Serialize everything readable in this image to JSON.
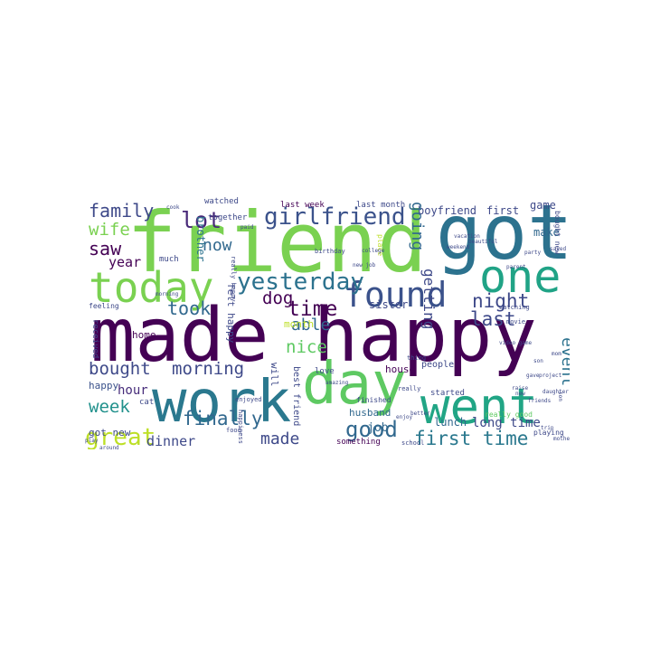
{
  "word_cloud": {
    "words": [
      {
        "text": "made happy",
        "color": "#440154"
      },
      {
        "text": "friend",
        "color": "#7ad151"
      },
      {
        "text": "got",
        "color": "#2c728e"
      },
      {
        "text": "work",
        "color": "#2a788e"
      },
      {
        "text": "day",
        "color": "#5ec962"
      },
      {
        "text": "went",
        "color": "#21a585"
      },
      {
        "text": "one",
        "color": "#20a386"
      },
      {
        "text": "today",
        "color": "#7ad151"
      },
      {
        "text": "found",
        "color": "#3b528b"
      },
      {
        "text": "yesterday",
        "color": "#2c728e"
      },
      {
        "text": "girlfriend",
        "color": "#3b528b"
      },
      {
        "text": "great",
        "color": "#bddf26"
      },
      {
        "text": "first time",
        "color": "#2a788e"
      },
      {
        "text": "good",
        "color": "#31688e"
      },
      {
        "text": "lot",
        "color": "#482878"
      },
      {
        "text": "time",
        "color": "#440154"
      },
      {
        "text": "bought",
        "color": "#3e4989"
      },
      {
        "text": "morning",
        "color": "#3e4989"
      },
      {
        "text": "night",
        "color": "#3e4989"
      },
      {
        "text": "last",
        "color": "#3e4989"
      },
      {
        "text": "family",
        "color": "#3e4989"
      },
      {
        "text": "wife",
        "color": "#7ad151"
      },
      {
        "text": "saw",
        "color": "#440154"
      },
      {
        "text": "year",
        "color": "#440154"
      },
      {
        "text": "now",
        "color": "#31688e"
      },
      {
        "text": "dog",
        "color": "#440154"
      },
      {
        "text": "took",
        "color": "#31688e"
      },
      {
        "text": "nice",
        "color": "#5ec962"
      },
      {
        "text": "able",
        "color": "#31688e"
      },
      {
        "text": "week",
        "color": "#21918c"
      },
      {
        "text": "finally",
        "color": "#31688e"
      },
      {
        "text": "made",
        "color": "#3e4989"
      },
      {
        "text": "dinner",
        "color": "#3e4989"
      },
      {
        "text": "hour",
        "color": "#472d7b"
      },
      {
        "text": "home",
        "color": "#440154"
      },
      {
        "text": "job",
        "color": "#31688e"
      },
      {
        "text": "lunch",
        "color": "#31688e"
      },
      {
        "text": "long time",
        "color": "#3e4989"
      },
      {
        "text": "sister",
        "color": "#3e4989"
      },
      {
        "text": "house",
        "color": "#440154"
      },
      {
        "text": "boyfriend",
        "color": "#3e4989"
      },
      {
        "text": "first",
        "color": "#3e4989"
      },
      {
        "text": "game",
        "color": "#3e4989"
      },
      {
        "text": "make",
        "color": "#31688e"
      },
      {
        "text": "watched",
        "color": "#3e4989"
      },
      {
        "text": "last week",
        "color": "#440154"
      },
      {
        "text": "last month",
        "color": "#3e4989"
      },
      {
        "text": "together",
        "color": "#3e4989"
      },
      {
        "text": "month",
        "color": "#bddf26"
      },
      {
        "text": "happy",
        "color": "#3b528b"
      },
      {
        "text": "cat",
        "color": "#3e4989"
      },
      {
        "text": "much",
        "color": "#3e4989"
      },
      {
        "text": "got new",
        "color": "#3e4989"
      },
      {
        "text": "something",
        "color": "#440154"
      },
      {
        "text": "husband",
        "color": "#31688e"
      },
      {
        "text": "started",
        "color": "#3e4989"
      },
      {
        "text": "people",
        "color": "#3e4989"
      },
      {
        "text": "love",
        "color": "#3e4989"
      },
      {
        "text": "finished",
        "color": "#3e4989"
      },
      {
        "text": "event",
        "color": "#2c728e"
      },
      {
        "text": "going",
        "color": "#31688e"
      },
      {
        "text": "getting",
        "color": "#3e4989"
      },
      {
        "text": "brother",
        "color": "#2c728e"
      },
      {
        "text": "felt happy",
        "color": "#3e4989"
      },
      {
        "text": "received",
        "color": "#3e4989"
      },
      {
        "text": "will",
        "color": "#3e4989"
      },
      {
        "text": "best friend",
        "color": "#3e4989"
      },
      {
        "text": "playing",
        "color": "#3e4989"
      },
      {
        "text": "bought new",
        "color": "#3e4989"
      },
      {
        "text": "feeling",
        "color": "#3e4989"
      },
      {
        "text": "place",
        "color": "#bddf26"
      },
      {
        "text": "birthday",
        "color": "#3e4989"
      },
      {
        "text": "school",
        "color": "#3e4989"
      },
      {
        "text": "really good",
        "color": "#5ec962"
      },
      {
        "text": "thing",
        "color": "#3e4989"
      },
      {
        "text": "watching",
        "color": "#3e4989"
      },
      {
        "text": "movie",
        "color": "#3e4989"
      },
      {
        "text": "enjoyed",
        "color": "#3e4989"
      },
      {
        "text": "really",
        "color": "#3e4989"
      },
      {
        "text": "really happy",
        "color": "#3e4989"
      },
      {
        "text": "food",
        "color": "#3e4989"
      },
      {
        "text": "happiness",
        "color": "#3e4989"
      },
      {
        "text": "amazing",
        "color": "#3e4989"
      },
      {
        "text": "paid",
        "color": "#3e4989"
      },
      {
        "text": "college",
        "color": "#3e4989"
      },
      {
        "text": "morning",
        "color": "#3e4989"
      },
      {
        "text": "new job",
        "color": "#3e4989"
      },
      {
        "text": "cook",
        "color": "#3e4989"
      },
      {
        "text": "friends",
        "color": "#3e4989"
      },
      {
        "text": "trip",
        "color": "#3e4989"
      },
      {
        "text": "gave",
        "color": "#3e4989"
      },
      {
        "text": "raise",
        "color": "#3e4989"
      },
      {
        "text": "project",
        "color": "#3e4989"
      },
      {
        "text": "mother",
        "color": "#3e4989"
      },
      {
        "text": "son",
        "color": "#3e4989"
      },
      {
        "text": "daughter",
        "color": "#3e4989"
      },
      {
        "text": "vacation",
        "color": "#3e4989"
      },
      {
        "text": "beautiful",
        "color": "#3e4989"
      },
      {
        "text": "weekend",
        "color": "#3e4989"
      },
      {
        "text": "party",
        "color": "#3e4989"
      },
      {
        "text": "parent",
        "color": "#3e4989"
      },
      {
        "text": "better",
        "color": "#3e4989"
      },
      {
        "text": "enjoy",
        "color": "#3e4989"
      },
      {
        "text": "play",
        "color": "#3e4989"
      },
      {
        "text": "around",
        "color": "#3e4989"
      },
      {
        "text": "video game",
        "color": "#3e4989"
      },
      {
        "text": "walk",
        "color": "#3e4989"
      },
      {
        "text": "son",
        "color": "#3e4989"
      },
      {
        "text": "mom",
        "color": "#3e4989"
      },
      {
        "text": "saved",
        "color": "#3e4989"
      },
      {
        "text": "new",
        "color": "#3e4989"
      }
    ]
  }
}
